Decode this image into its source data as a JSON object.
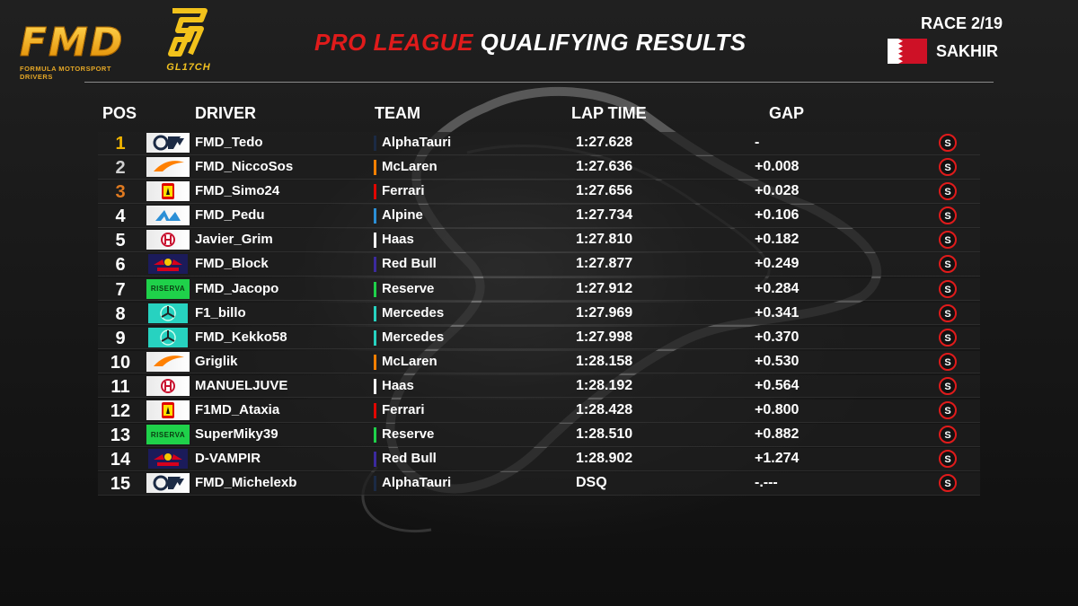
{
  "header": {
    "fmd_logo_text": "FMD",
    "fmd_logo_sub": "FORMULA MOTORSPORT DRIVERS",
    "glitch_logo_text": "GL17CH",
    "title_part1": "PRO LEAGUE",
    "title_part2": "QUALIFYING RESULTS",
    "race": "RACE 2/19",
    "location": "SAKHIR"
  },
  "columns": {
    "pos": "POS",
    "driver": "DRIVER",
    "team": "TEAM",
    "lap_time": "LAP TIME",
    "gap": "GAP"
  },
  "colors": {
    "title_red": "#e01b1b",
    "gold": "#f0b400",
    "bronze": "#e07a20"
  },
  "rows": [
    {
      "pos": "1",
      "driver": "FMD_Tedo",
      "team": "AlphaTauri",
      "lap": "1:27.628",
      "gap": "-",
      "logo": "alphatauri",
      "teamColor": "#1b2a44",
      "posColor": "#f0b400"
    },
    {
      "pos": "2",
      "driver": "FMD_NiccoSos",
      "team": "McLaren",
      "lap": "1:27.636",
      "gap": "+0.008",
      "logo": "mclaren",
      "teamColor": "#ff8000",
      "posColor": "#d0d0d0"
    },
    {
      "pos": "3",
      "driver": "FMD_Simo24",
      "team": "Ferrari",
      "lap": "1:27.656",
      "gap": "+0.028",
      "logo": "ferrari",
      "teamColor": "#e10600",
      "posColor": "#e07a20"
    },
    {
      "pos": "4",
      "driver": "FMD_Pedu",
      "team": "Alpine",
      "lap": "1:27.734",
      "gap": "+0.106",
      "logo": "alpine",
      "teamColor": "#2b8fd6",
      "posColor": "#ffffff"
    },
    {
      "pos": "5",
      "driver": "Javier_Grim",
      "team": "Haas",
      "lap": "1:27.810",
      "gap": "+0.182",
      "logo": "haas",
      "teamColor": "#ffffff",
      "posColor": "#ffffff"
    },
    {
      "pos": "6",
      "driver": "FMD_Block",
      "team": "Red Bull",
      "lap": "1:27.877",
      "gap": "+0.249",
      "logo": "redbull",
      "teamColor": "#3b2a9e",
      "posColor": "#ffffff"
    },
    {
      "pos": "7",
      "driver": "FMD_Jacopo",
      "team": "Reserve",
      "lap": "1:27.912",
      "gap": "+0.284",
      "logo": "riserva",
      "teamColor": "#1fd14a",
      "posColor": "#ffffff"
    },
    {
      "pos": "8",
      "driver": "F1_billo",
      "team": "Mercedes",
      "lap": "1:27.969",
      "gap": "+0.341",
      "logo": "mercedes",
      "teamColor": "#27d2c0",
      "posColor": "#ffffff"
    },
    {
      "pos": "9",
      "driver": "FMD_Kekko58",
      "team": "Mercedes",
      "lap": "1:27.998",
      "gap": "+0.370",
      "logo": "mercedes",
      "teamColor": "#27d2c0",
      "posColor": "#ffffff"
    },
    {
      "pos": "10",
      "driver": "Griglik",
      "team": "McLaren",
      "lap": "1:28.158",
      "gap": "+0.530",
      "logo": "mclaren",
      "teamColor": "#ff8000",
      "posColor": "#ffffff"
    },
    {
      "pos": "11",
      "driver": "MANUELJUVE",
      "team": "Haas",
      "lap": "1:28.192",
      "gap": "+0.564",
      "logo": "haas",
      "teamColor": "#ffffff",
      "posColor": "#ffffff"
    },
    {
      "pos": "12",
      "driver": "F1MD_Ataxia",
      "team": "Ferrari",
      "lap": "1:28.428",
      "gap": "+0.800",
      "logo": "ferrari",
      "teamColor": "#e10600",
      "posColor": "#ffffff"
    },
    {
      "pos": "13",
      "driver": "SuperMiky39",
      "team": "Reserve",
      "lap": "1:28.510",
      "gap": "+0.882",
      "logo": "riserva",
      "teamColor": "#1fd14a",
      "posColor": "#ffffff"
    },
    {
      "pos": "14",
      "driver": "D-VAMPIR",
      "team": "Red Bull",
      "lap": "1:28.902",
      "gap": "+1.274",
      "logo": "redbull",
      "teamColor": "#3b2a9e",
      "posColor": "#ffffff"
    },
    {
      "pos": "15",
      "driver": "FMD_Michelexb",
      "team": "AlphaTauri",
      "lap": "DSQ",
      "gap": "-.---",
      "logo": "alphatauri",
      "teamColor": "#1b2a44",
      "posColor": "#ffffff"
    }
  ],
  "logo_texts": {
    "riserva": "RISERVA"
  }
}
